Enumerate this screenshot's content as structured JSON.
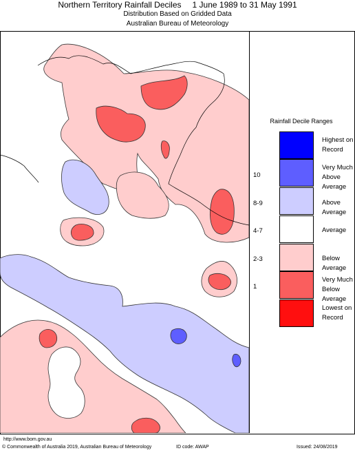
{
  "header": {
    "title": "Northern Territory Rainfall Deciles",
    "period": "1 June 1989 to 31 May 1991",
    "subtitle_line1": "Distribution Based on Gridded Data",
    "subtitle_line2": "Australian Bureau of Meteorology"
  },
  "legend": {
    "title": "Rainfall Decile Ranges",
    "items": [
      {
        "code": "",
        "label_line1": "Highest on",
        "label_line2": "Record",
        "color": "#0000ff"
      },
      {
        "code": "10",
        "label_line1": "Very Much",
        "label_line2": "Above Average",
        "color": "#5e5eff"
      },
      {
        "code": "8-9",
        "label_line1": "Above Average",
        "label_line2": "",
        "color": "#cdcdff"
      },
      {
        "code": "4-7",
        "label_line1": "Average",
        "label_line2": "",
        "color": "#ffffff"
      },
      {
        "code": "2-3",
        "label_line1": "Below Average",
        "label_line2": "",
        "color": "#ffcdcd"
      },
      {
        "code": "1",
        "label_line1": "Very Much",
        "label_line2": "Below Average",
        "color": "#fa5e5e"
      },
      {
        "code": "",
        "label_line1": "Lowest on",
        "label_line2": "Record",
        "color": "#ff0f0f"
      }
    ]
  },
  "map_colors": {
    "above_average": "#cdcdff",
    "very_much_above": "#5e5eff",
    "below_average": "#ffcdcd",
    "very_much_below": "#fa5e5e",
    "average": "#ffffff"
  },
  "footer": {
    "url": "http://www.bom.gov.au",
    "copyright": "© Commonwealth of Australia 2019, Australian Bureau of Meteorology",
    "id_code": "ID code: AWAP",
    "issued": "Issued: 24/08/2019"
  }
}
